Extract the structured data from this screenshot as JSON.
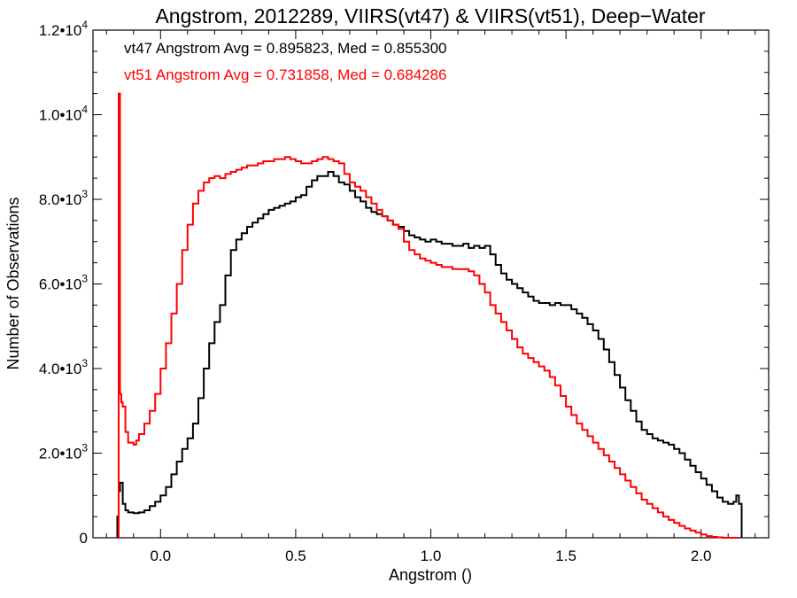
{
  "chart_data": {
    "type": "line",
    "step": true,
    "title": "Angstrom, 2012289, VIIRS(vt47) & VIIRS(vt51), Deep−Water",
    "xlabel": "Angstrom ()",
    "ylabel": "Number of Observations",
    "xlim": [
      -0.25,
      2.25
    ],
    "ylim": [
      0,
      12000
    ],
    "xticks": [
      {
        "value": 0.0,
        "label": "0.0"
      },
      {
        "value": 0.5,
        "label": "0.5"
      },
      {
        "value": 1.0,
        "label": "1.0"
      },
      {
        "value": 1.5,
        "label": "1.5"
      },
      {
        "value": 2.0,
        "label": "2.0"
      }
    ],
    "yticks": [
      {
        "value": 0,
        "label": "0",
        "exp": ""
      },
      {
        "value": 2000,
        "label": "2.0•10",
        "exp": "3"
      },
      {
        "value": 4000,
        "label": "4.0•10",
        "exp": "3"
      },
      {
        "value": 6000,
        "label": "6.0•10",
        "exp": "3"
      },
      {
        "value": 8000,
        "label": "8.0•10",
        "exp": "3"
      },
      {
        "value": 10000,
        "label": "1.0•10",
        "exp": "4"
      },
      {
        "value": 12000,
        "label": "1.2•10",
        "exp": "4"
      }
    ],
    "grid": false,
    "annotations": [
      {
        "text": "vt47 Angstrom Avg = 0.895823, Med = 0.855300",
        "color": "#000000"
      },
      {
        "text": "vt51 Angstrom Avg = 0.731858, Med = 0.684286",
        "color": "#ff0000"
      }
    ],
    "series": [
      {
        "color": "#000000",
        "x": [
          -0.16,
          -0.155,
          -0.15,
          -0.14,
          -0.13,
          -0.12,
          -0.1,
          -0.08,
          -0.06,
          -0.04,
          -0.02,
          0.0,
          0.02,
          0.04,
          0.06,
          0.08,
          0.1,
          0.12,
          0.14,
          0.16,
          0.18,
          0.2,
          0.22,
          0.24,
          0.26,
          0.28,
          0.3,
          0.32,
          0.34,
          0.36,
          0.38,
          0.4,
          0.42,
          0.44,
          0.46,
          0.48,
          0.5,
          0.52,
          0.54,
          0.56,
          0.58,
          0.6,
          0.62,
          0.64,
          0.66,
          0.68,
          0.7,
          0.72,
          0.74,
          0.76,
          0.78,
          0.8,
          0.82,
          0.84,
          0.86,
          0.88,
          0.9,
          0.92,
          0.94,
          0.96,
          0.98,
          1.0,
          1.02,
          1.04,
          1.06,
          1.08,
          1.1,
          1.12,
          1.14,
          1.16,
          1.18,
          1.2,
          1.22,
          1.24,
          1.26,
          1.28,
          1.3,
          1.32,
          1.34,
          1.36,
          1.38,
          1.4,
          1.42,
          1.44,
          1.46,
          1.48,
          1.5,
          1.52,
          1.54,
          1.56,
          1.58,
          1.6,
          1.62,
          1.64,
          1.66,
          1.68,
          1.7,
          1.72,
          1.74,
          1.76,
          1.78,
          1.8,
          1.82,
          1.84,
          1.86,
          1.88,
          1.9,
          1.92,
          1.94,
          1.96,
          1.98,
          2.0,
          2.02,
          2.04,
          2.06,
          2.08,
          2.1,
          2.12,
          2.13,
          2.14,
          2.15
        ],
        "y": [
          500,
          1100,
          1300,
          800,
          650,
          600,
          580,
          600,
          650,
          750,
          850,
          1000,
          1200,
          1500,
          1800,
          2100,
          2350,
          2700,
          3300,
          4000,
          4600,
          5100,
          5500,
          6200,
          6800,
          7050,
          7200,
          7350,
          7450,
          7550,
          7650,
          7750,
          7800,
          7850,
          7900,
          7950,
          8050,
          8100,
          8300,
          8450,
          8550,
          8550,
          8650,
          8550,
          8400,
          8350,
          8200,
          8050,
          7950,
          7800,
          7700,
          7650,
          7600,
          7500,
          7400,
          7350,
          7250,
          7150,
          7100,
          7050,
          7000,
          7050,
          7000,
          6950,
          6950,
          6900,
          6900,
          6950,
          6850,
          6900,
          6850,
          6900,
          6700,
          6450,
          6250,
          6100,
          6000,
          5900,
          5800,
          5700,
          5600,
          5550,
          5550,
          5500,
          5550,
          5500,
          5500,
          5400,
          5300,
          5200,
          5050,
          4900,
          4700,
          4450,
          4150,
          3850,
          3550,
          3250,
          3000,
          2750,
          2550,
          2450,
          2350,
          2300,
          2250,
          2200,
          2100,
          2000,
          1850,
          1700,
          1550,
          1400,
          1250,
          1100,
          950,
          850,
          800,
          850,
          1000,
          800,
          0
        ]
      },
      {
        "color": "#ff0000",
        "x": [
          -0.16,
          -0.155,
          -0.15,
          -0.145,
          -0.14,
          -0.13,
          -0.12,
          -0.1,
          -0.09,
          -0.08,
          -0.06,
          -0.04,
          -0.02,
          0.0,
          0.02,
          0.04,
          0.06,
          0.08,
          0.1,
          0.12,
          0.14,
          0.16,
          0.18,
          0.2,
          0.22,
          0.24,
          0.26,
          0.28,
          0.3,
          0.32,
          0.34,
          0.36,
          0.38,
          0.4,
          0.42,
          0.44,
          0.46,
          0.48,
          0.5,
          0.52,
          0.54,
          0.56,
          0.58,
          0.6,
          0.62,
          0.64,
          0.66,
          0.68,
          0.7,
          0.72,
          0.74,
          0.76,
          0.78,
          0.8,
          0.82,
          0.84,
          0.86,
          0.88,
          0.9,
          0.92,
          0.94,
          0.96,
          0.98,
          1.0,
          1.02,
          1.04,
          1.06,
          1.08,
          1.1,
          1.12,
          1.14,
          1.16,
          1.18,
          1.2,
          1.22,
          1.24,
          1.26,
          1.28,
          1.3,
          1.32,
          1.34,
          1.36,
          1.38,
          1.4,
          1.42,
          1.44,
          1.46,
          1.48,
          1.5,
          1.52,
          1.54,
          1.56,
          1.58,
          1.6,
          1.62,
          1.64,
          1.66,
          1.68,
          1.7,
          1.72,
          1.74,
          1.76,
          1.78,
          1.8,
          1.82,
          1.84,
          1.86,
          1.88,
          1.9,
          1.92,
          1.94,
          1.96,
          1.98,
          2.0,
          2.02,
          2.04,
          2.06,
          2.08,
          2.1,
          2.12,
          2.14
        ],
        "y": [
          0,
          10500,
          3400,
          3200,
          3100,
          2500,
          2250,
          2200,
          2300,
          2450,
          2700,
          3000,
          3400,
          4000,
          4600,
          5300,
          6000,
          6800,
          7400,
          7900,
          8200,
          8400,
          8500,
          8550,
          8500,
          8600,
          8650,
          8700,
          8750,
          8800,
          8800,
          8850,
          8900,
          8900,
          8950,
          8950,
          9000,
          8950,
          8900,
          8850,
          8850,
          8900,
          8950,
          9000,
          8950,
          8900,
          8850,
          8600,
          8400,
          8300,
          8200,
          8050,
          7900,
          7750,
          7600,
          7500,
          7400,
          7300,
          7000,
          6800,
          6700,
          6600,
          6550,
          6500,
          6450,
          6400,
          6400,
          6350,
          6350,
          6350,
          6300,
          6200,
          6000,
          5800,
          5500,
          5300,
          5100,
          4900,
          4700,
          4500,
          4350,
          4250,
          4150,
          4050,
          3950,
          3800,
          3600,
          3350,
          3100,
          2900,
          2700,
          2550,
          2400,
          2250,
          2100,
          1950,
          1800,
          1650,
          1500,
          1350,
          1200,
          1050,
          900,
          800,
          700,
          600,
          500,
          420,
          350,
          280,
          220,
          170,
          120,
          80,
          40,
          20,
          10,
          0,
          0,
          0,
          0
        ]
      }
    ]
  }
}
